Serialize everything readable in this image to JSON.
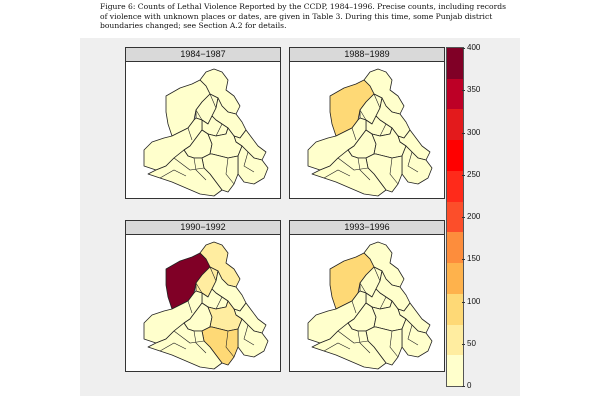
{
  "caption": "Figure 6: Counts of Lethal Violence Reported by the CCDP, 1984–1996. Precise counts, including records of violence with unknown places or dates, are given in Table 3. During this time, some Punjab district boundaries changed; see Section A.2 for details.",
  "panels": [
    {
      "title": "1984−1987",
      "fills": {
        "gurdaspur": 0,
        "amritsar": 35,
        "kapurthala": 0,
        "hoshiarpur": 0,
        "jalandhar": 0,
        "ropar": 0,
        "ferozepur": 0,
        "faridkot": 0,
        "ludhiana": 0,
        "patiala": 0,
        "sangrur": 0,
        "bathinda": 0
      }
    },
    {
      "title": "1988−1989",
      "fills": {
        "gurdaspur": 0,
        "amritsar": 90,
        "kapurthala": 0,
        "hoshiarpur": 0,
        "jalandhar": 0,
        "ropar": 0,
        "ferozepur": 0,
        "faridkot": 0,
        "ludhiana": 0,
        "patiala": 0,
        "sangrur": 0,
        "bathinda": 0
      }
    },
    {
      "title": "1990−1992",
      "fills": {
        "gurdaspur": 45,
        "amritsar": 390,
        "kapurthala": 40,
        "hoshiarpur": 15,
        "jalandhar": 5,
        "ropar": 35,
        "ferozepur": 35,
        "faridkot": 15,
        "ludhiana": 40,
        "patiala": 30,
        "sangrur": 80,
        "bathinda": 25
      }
    },
    {
      "title": "1993−1996",
      "fills": {
        "gurdaspur": 20,
        "amritsar": 80,
        "kapurthala": 0,
        "hoshiarpur": 0,
        "jalandhar": 0,
        "ropar": 0,
        "ferozepur": 0,
        "faridkot": 0,
        "ludhiana": 20,
        "patiala": 0,
        "sangrur": 25,
        "bathinda": 0
      }
    }
  ],
  "legend": {
    "ticks": [
      "0",
      "50",
      "100",
      "150",
      "200",
      "250",
      "300",
      "350",
      "400"
    ],
    "min": 0,
    "max": 400,
    "colors": [
      "#ffffcc",
      "#ffeda0",
      "#fed976",
      "#feb24c",
      "#fd8d3c",
      "#fc4e2a",
      "#ff2a1a",
      "#ff0000",
      "#e31a1c",
      "#bd0026",
      "#800026"
    ]
  }
}
